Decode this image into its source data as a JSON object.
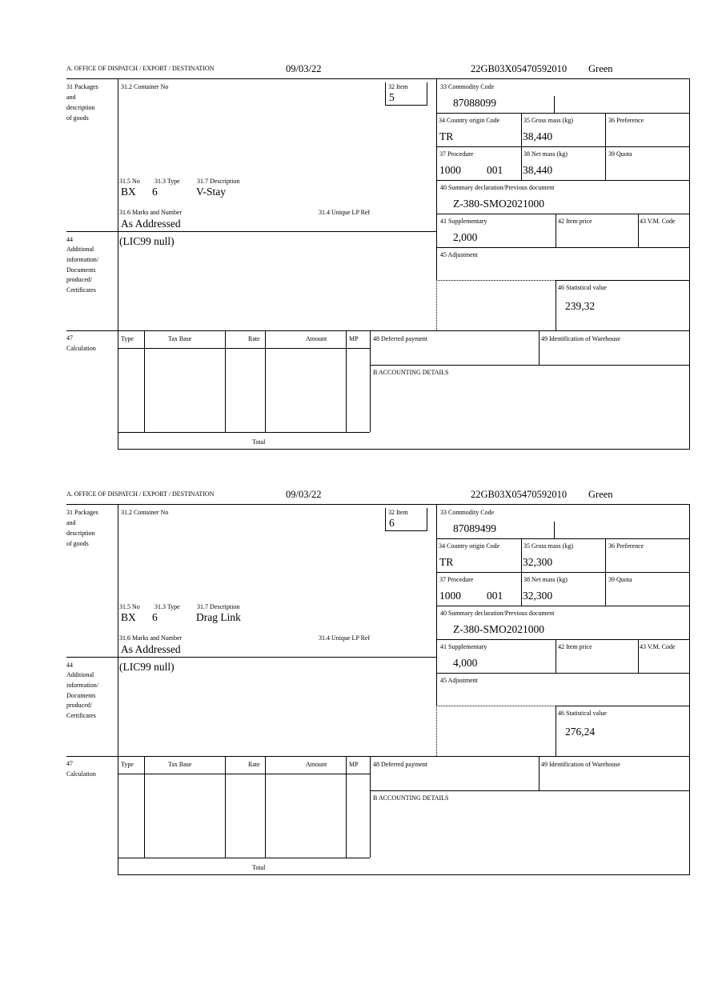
{
  "labels": {
    "office": "A.  OFFICE OF DISPATCH / EXPORT / DESTINATION",
    "l31": [
      "31 Packages",
      "and",
      "description",
      "of goods"
    ],
    "l31_2": "31.2 Container No",
    "l32": "32 Item",
    "l33": "33 Commodity Code",
    "l34": "34 Country origin Code",
    "l35": "35 Gross mass (kg)",
    "l36": "36 Preference",
    "l37": "37 Procedure",
    "l38": "38 Net mass (kg)",
    "l39": "39 Quota",
    "l40": "40 Summary declaration/Previous document",
    "l41": "41 Supplementary",
    "l42": "42 Item price",
    "l43": "43 V.M. Code",
    "l45": "45 Adjustment",
    "l46": "46 Statistical value",
    "l31_5": "31.5 No",
    "l31_3": "31.3 Type",
    "l31_7": "31.7 Description",
    "l31_6": "31.6 Marks and Number",
    "l31_4": "31.4 Unique LP Ref",
    "l44": [
      "44",
      "Additional",
      "information/",
      "Documents",
      "produced/",
      "Certificates"
    ],
    "l47": [
      "47",
      "Calculation"
    ],
    "calc_cols": [
      "Type",
      "Tax Base",
      "Rate",
      "Amount",
      "MP"
    ],
    "total": "Total",
    "l48": "48 Deferred payment",
    "l49": "49 Identification of Warehouse",
    "lB": "B ACCOUNTING DETAILS"
  },
  "forms": [
    {
      "date": "09/03/22",
      "reference": "22GB03X05470592010",
      "route": "Green",
      "item": "5",
      "commodity_code": "87088099",
      "country_origin": "TR",
      "gross_mass": "38,440",
      "procedure": "1000",
      "procedure_additional": "001",
      "net_mass": "38,440",
      "previous_document": "Z-380-SMO2021000",
      "supplementary": "2,000",
      "statistical_value": "239,32",
      "pkg_kind": "BX",
      "pkg_number": "6",
      "description": "V-Stay",
      "marks": "As Addressed",
      "additional_info": "(LIC99 null)"
    },
    {
      "date": "09/03/22",
      "reference": "22GB03X05470592010",
      "route": "Green",
      "item": "6",
      "commodity_code": "87089499",
      "country_origin": "TR",
      "gross_mass": "32,300",
      "procedure": "1000",
      "procedure_additional": "001",
      "net_mass": "32,300",
      "previous_document": "Z-380-SMO2021000",
      "supplementary": "4,000",
      "statistical_value": "276,24",
      "pkg_kind": "BX",
      "pkg_number": "6",
      "description": "Drag Link",
      "marks": "As Addressed",
      "additional_info": "(LIC99 null)"
    }
  ]
}
